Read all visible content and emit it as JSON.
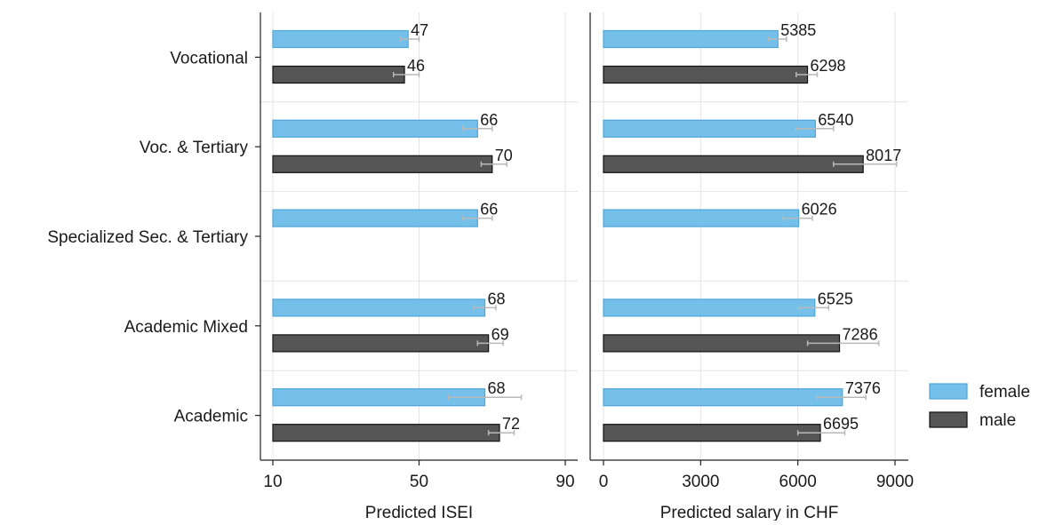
{
  "chart_data": {
    "type": "bar",
    "orientation": "horizontal",
    "categories": [
      "Vocational",
      "Voc. & Tertiary",
      "Specialized Sec. & Tertiary",
      "Academic Mixed",
      "Academic"
    ],
    "legend": {
      "position": "right",
      "entries": [
        {
          "name": "female",
          "color": "#74c0ea"
        },
        {
          "name": "male",
          "color": "#555555"
        }
      ]
    },
    "panels": [
      {
        "xlabel": "Predicted ISEI",
        "xlim": [
          10,
          90
        ],
        "xticks": [
          10,
          50,
          90
        ],
        "grid": true,
        "series": [
          {
            "name": "female",
            "values": [
              47,
              66,
              66,
              68,
              68
            ],
            "labels": [
              "47",
              "66",
              "66",
              "68",
              "68"
            ],
            "ci_low": [
              45,
              62,
              62,
              65,
              58
            ],
            "ci_high": [
              50,
              70,
              70,
              71,
              78
            ]
          },
          {
            "name": "male",
            "values": [
              46,
              70,
              69,
              72
            ],
            "labels": [
              "46",
              "70",
              "69",
              "72"
            ],
            "category_index": [
              0,
              1,
              3,
              4
            ],
            "ci_low": [
              43,
              67,
              66,
              69
            ],
            "ci_high": [
              50,
              74,
              73,
              76
            ]
          }
        ]
      },
      {
        "xlabel": "Predicted salary in CHF",
        "xlim": [
          0,
          9000
        ],
        "xticks": [
          0,
          3000,
          6000,
          9000
        ],
        "grid": true,
        "series": [
          {
            "name": "female",
            "values": [
              5385,
              6540,
              6026,
              6525,
              7376
            ],
            "labels": [
              "5385",
              "6540",
              "6026",
              "6525",
              "7376"
            ],
            "ci_low": [
              5100,
              5950,
              5550,
              6050,
              6600
            ],
            "ci_high": [
              5650,
              7100,
              6450,
              6950,
              8100
            ]
          },
          {
            "name": "male",
            "values": [
              6298,
              8017,
              7286,
              6695
            ],
            "labels": [
              "6298",
              "8017",
              "7286",
              "6695"
            ],
            "category_index": [
              0,
              1,
              3,
              4
            ],
            "ci_low": [
              5950,
              7100,
              6300,
              6000
            ],
            "ci_high": [
              6600,
              9050,
              8500,
              7450
            ]
          }
        ]
      }
    ]
  }
}
